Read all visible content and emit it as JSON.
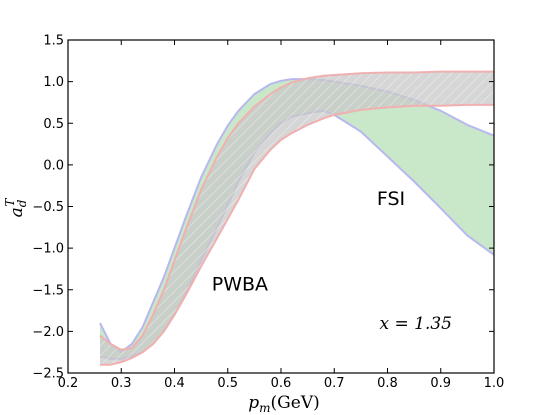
{
  "chart_data": {
    "type": "area",
    "title": "",
    "xlabel_var": "p",
    "xlabel_sub": "m",
    "xlabel_unit": "(GeV)",
    "ylabel_var": "a",
    "ylabel_sub": "d",
    "ylabel_sup": "T",
    "xlim": [
      0.2,
      1.0
    ],
    "ylim": [
      -2.5,
      1.5
    ],
    "xticks": [
      0.2,
      0.3,
      0.4,
      0.5,
      0.6,
      0.7,
      0.8,
      0.9,
      1.0
    ],
    "xtick_labels": [
      "0.2",
      "0.3",
      "0.4",
      "0.5",
      "0.6",
      "0.7",
      "0.8",
      "0.9",
      "1.0"
    ],
    "yticks": [
      -2.5,
      -2.0,
      -1.5,
      -1.0,
      -0.5,
      0.0,
      0.5,
      1.0,
      1.5
    ],
    "ytick_labels": [
      "−2.5",
      "−2.0",
      "−1.5",
      "−1.0",
      "−0.5",
      "0.0",
      "0.5",
      "1.0",
      "1.5"
    ],
    "grid": false,
    "series": [
      {
        "fill": "#bfe3bf",
        "edge": "#b8b8f0",
        "x": [
          0.26,
          0.28,
          0.3,
          0.32,
          0.34,
          0.36,
          0.38,
          0.4,
          0.42,
          0.45,
          0.48,
          0.5,
          0.52,
          0.55,
          0.58,
          0.6,
          0.62,
          0.65,
          0.68,
          0.7,
          0.75,
          0.8,
          0.85,
          0.9,
          0.95,
          1.0
        ],
        "upper": [
          -1.9,
          -2.15,
          -2.25,
          -2.15,
          -1.95,
          -1.65,
          -1.35,
          -1.0,
          -0.65,
          -0.15,
          0.25,
          0.47,
          0.65,
          0.85,
          0.97,
          1.01,
          1.03,
          1.03,
          1.02,
          1.0,
          0.95,
          0.88,
          0.78,
          0.65,
          0.48,
          0.35
        ],
        "lower": [
          -2.3,
          -2.33,
          -2.33,
          -2.3,
          -2.25,
          -2.15,
          -2.0,
          -1.8,
          -1.55,
          -1.15,
          -0.75,
          -0.48,
          -0.2,
          0.15,
          0.38,
          0.5,
          0.58,
          0.62,
          0.65,
          0.6,
          0.4,
          0.1,
          -0.2,
          -0.52,
          -0.85,
          -1.08
        ]
      },
      {
        "fill": "#c8c8c8",
        "edge": "#f0b0b0",
        "x": [
          0.26,
          0.28,
          0.3,
          0.32,
          0.34,
          0.36,
          0.38,
          0.4,
          0.42,
          0.45,
          0.48,
          0.5,
          0.52,
          0.55,
          0.58,
          0.6,
          0.62,
          0.65,
          0.68,
          0.7,
          0.75,
          0.8,
          0.85,
          0.9,
          0.95,
          1.0
        ],
        "upper": [
          -2.05,
          -2.15,
          -2.22,
          -2.2,
          -2.05,
          -1.8,
          -1.5,
          -1.15,
          -0.8,
          -0.3,
          0.1,
          0.32,
          0.5,
          0.7,
          0.85,
          0.93,
          0.99,
          1.04,
          1.07,
          1.08,
          1.1,
          1.11,
          1.11,
          1.12,
          1.12,
          1.12
        ],
        "lower": [
          -2.4,
          -2.4,
          -2.37,
          -2.32,
          -2.25,
          -2.15,
          -2.0,
          -1.8,
          -1.58,
          -1.22,
          -0.88,
          -0.65,
          -0.42,
          -0.05,
          0.18,
          0.3,
          0.38,
          0.48,
          0.56,
          0.6,
          0.66,
          0.69,
          0.71,
          0.71,
          0.72,
          0.72
        ]
      }
    ],
    "annotations": [
      {
        "text": "FSI",
        "x": 0.78,
        "y": -0.48,
        "style": "sans"
      },
      {
        "text": "PWBA",
        "x": 0.47,
        "y": -1.51,
        "style": "sans"
      },
      {
        "text": "x = 1.35",
        "x": 0.785,
        "y": -1.97,
        "style": "math"
      }
    ]
  }
}
